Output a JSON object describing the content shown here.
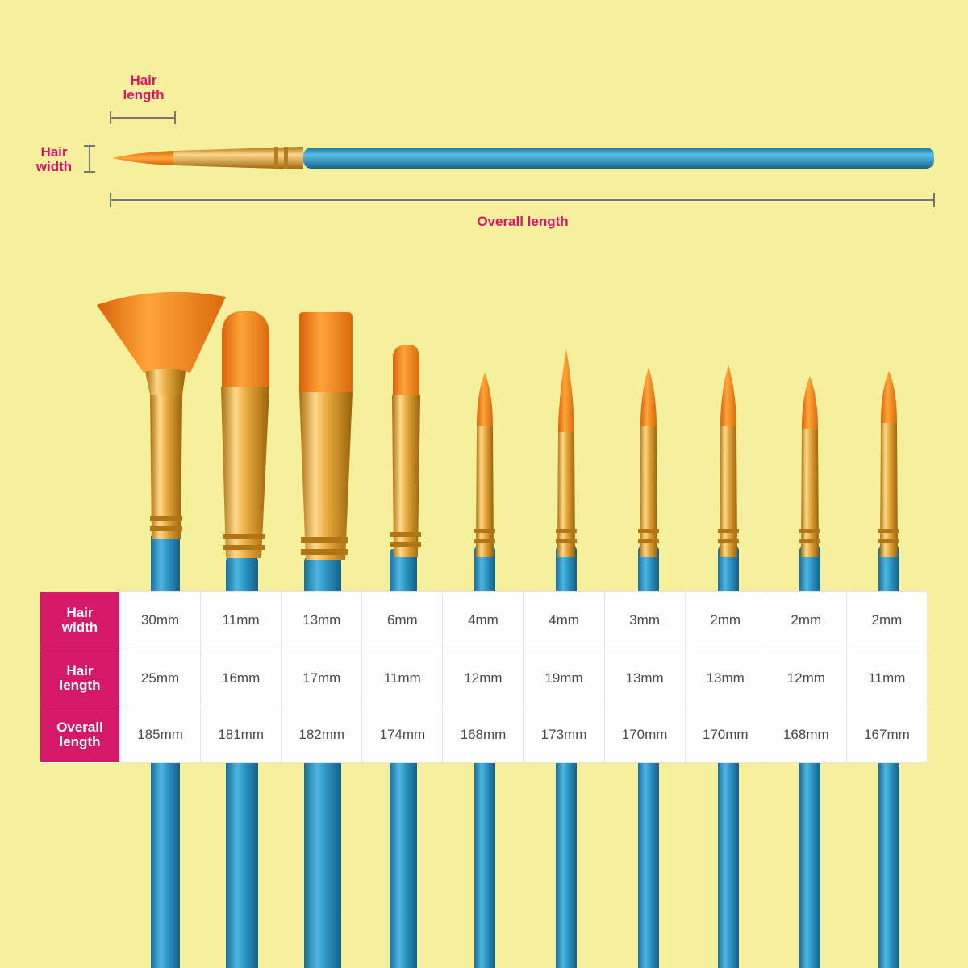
{
  "annotations": {
    "hair_length": "Hair\nlength",
    "hair_width": "Hair\nwidth",
    "overall_length": "Overall length"
  },
  "colors": {
    "background": "#f6f09c",
    "accent_pink": "#d61869",
    "handle_blue": "#2e9cc8",
    "ferrule_gold": "#e0a93a",
    "bristle_orange": "#f08a1a"
  },
  "brushes": [
    {
      "tip": "fan"
    },
    {
      "tip": "oval"
    },
    {
      "tip": "flat"
    },
    {
      "tip": "flat-small"
    },
    {
      "tip": "round"
    },
    {
      "tip": "round"
    },
    {
      "tip": "round"
    },
    {
      "tip": "round"
    },
    {
      "tip": "round"
    },
    {
      "tip": "round"
    }
  ],
  "table": {
    "rows": [
      {
        "label": "Hair\nwidth",
        "cells": [
          "30mm",
          "11mm",
          "13mm",
          "6mm",
          "4mm",
          "4mm",
          "3mm",
          "2mm",
          "2mm",
          "2mm"
        ]
      },
      {
        "label": "Hair\nlength",
        "cells": [
          "25mm",
          "16mm",
          "17mm",
          "11mm",
          "12mm",
          "19mm",
          "13mm",
          "13mm",
          "12mm",
          "11mm"
        ]
      },
      {
        "label": "Overall\nlength",
        "cells": [
          "185mm",
          "181mm",
          "182mm",
          "174mm",
          "168mm",
          "173mm",
          "170mm",
          "170mm",
          "168mm",
          "167mm"
        ]
      }
    ]
  }
}
